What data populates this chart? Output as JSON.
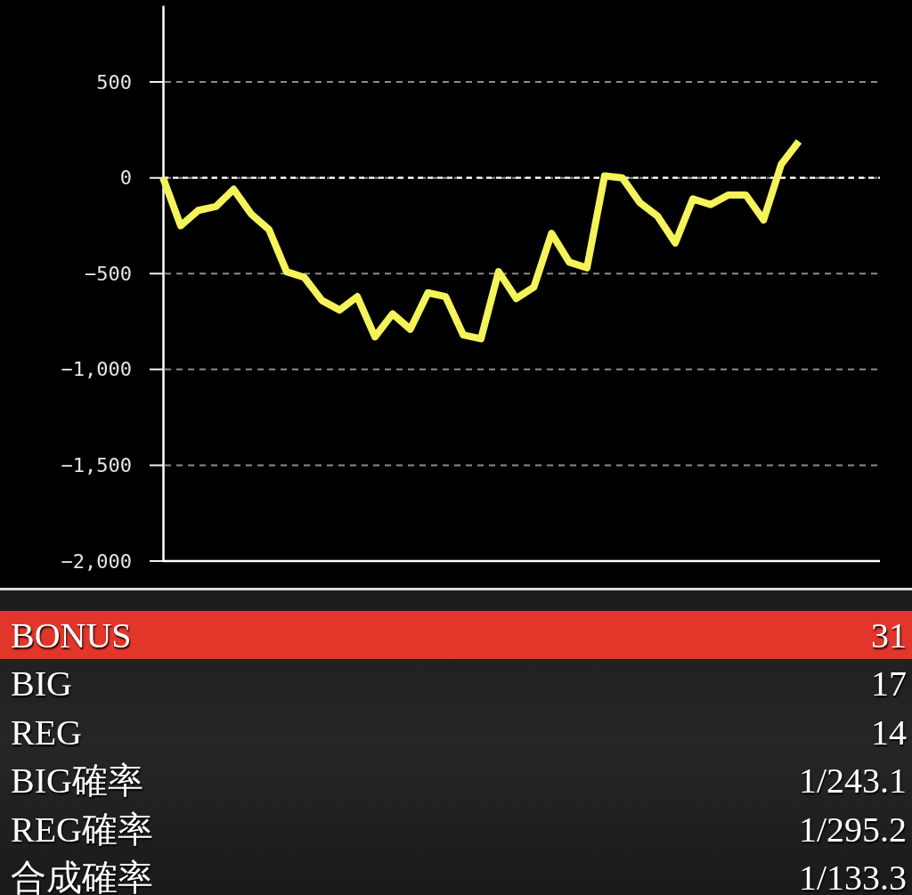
{
  "chart_data": [
    {
      "type": "line",
      "categories": [
        null,
        null,
        null,
        null,
        null,
        null,
        null,
        null,
        null,
        null,
        null,
        null,
        null,
        null,
        null,
        null,
        null,
        null,
        null,
        null,
        null,
        null,
        null,
        null,
        null,
        null,
        null,
        null,
        null,
        null,
        null,
        null,
        null,
        null,
        null,
        null,
        null
      ],
      "values": [
        0,
        -250,
        -170,
        -150,
        -60,
        -190,
        -270,
        -490,
        -520,
        -640,
        -690,
        -620,
        -830,
        -710,
        -790,
        -600,
        -620,
        -820,
        -840,
        -490,
        -630,
        -570,
        -290,
        -440,
        -470,
        10,
        0,
        -130,
        -200,
        -340,
        -110,
        -140,
        -90,
        -90,
        -220,
        70,
        190
      ],
      "color": "#f5f35a",
      "ylim": [
        -2000,
        900
      ],
      "yticks": [
        {
          "value": -2000,
          "label": "−2,000"
        },
        {
          "value": -1500,
          "label": "−1,500"
        },
        {
          "value": -1000,
          "label": "−1,000"
        },
        {
          "value": -500,
          "label": "−500"
        },
        0,
        500
      ],
      "tick_labels": "y",
      "grid": "y",
      "ref_lines": [
        {
          "axis": "y",
          "value": 0,
          "color": "#ffffff",
          "line_style": "dashed"
        }
      ]
    },
    {
      "type": "other",
      "annotations": [
        "BONUS",
        "31",
        "BIG",
        "17",
        "REG",
        "14",
        "BIG確率",
        "1/243.1",
        "REG確率",
        "1/295.2",
        "合成確率",
        "1/133.3"
      ],
      "color": "#e3362a"
    }
  ]
}
